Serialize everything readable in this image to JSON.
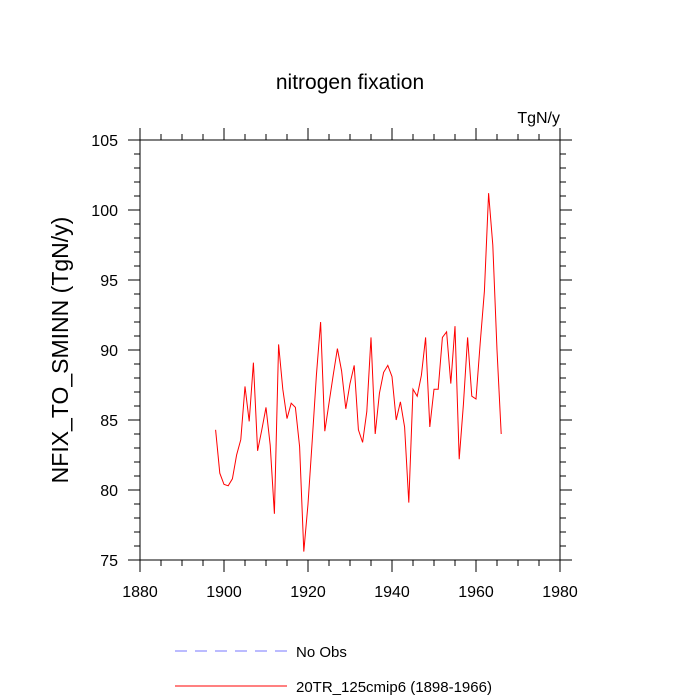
{
  "chart_data": {
    "type": "line",
    "title": "nitrogen fixation",
    "units": "TgN/y",
    "ylabel": "NFIX_TO_SMINN  (TgN/y)",
    "xlabel": "",
    "xlim": [
      1880,
      1980
    ],
    "ylim": [
      75,
      105
    ],
    "xticks": [
      1880,
      1900,
      1920,
      1940,
      1960,
      1980
    ],
    "yticks": [
      75,
      80,
      85,
      90,
      95,
      100,
      105
    ],
    "grid": false,
    "legend_position": "bottom",
    "series": [
      {
        "name": "20TR_125cmip6 (1898-1966)",
        "color": "#ff0000",
        "style": "solid",
        "x": [
          1898,
          1899,
          1900,
          1901,
          1902,
          1903,
          1904,
          1905,
          1906,
          1907,
          1908,
          1909,
          1910,
          1911,
          1912,
          1913,
          1914,
          1915,
          1916,
          1917,
          1918,
          1919,
          1920,
          1921,
          1922,
          1923,
          1924,
          1925,
          1926,
          1927,
          1928,
          1929,
          1930,
          1931,
          1932,
          1933,
          1934,
          1935,
          1936,
          1937,
          1938,
          1939,
          1940,
          1941,
          1942,
          1943,
          1944,
          1945,
          1946,
          1947,
          1948,
          1949,
          1950,
          1951,
          1952,
          1953,
          1954,
          1955,
          1956,
          1957,
          1958,
          1959,
          1960,
          1961,
          1962,
          1963,
          1964,
          1965,
          1966
        ],
        "values": [
          84.3,
          81.2,
          80.4,
          80.3,
          80.8,
          82.5,
          83.6,
          87.4,
          84.9,
          89.1,
          82.8,
          84.3,
          85.9,
          83.2,
          78.3,
          90.4,
          87.2,
          85.1,
          86.2,
          85.9,
          83.1,
          75.6,
          79.0,
          83.5,
          88.2,
          92.0,
          84.2,
          86.2,
          88.2,
          90.1,
          88.5,
          85.8,
          87.6,
          88.9,
          84.3,
          83.4,
          85.6,
          90.9,
          84.0,
          86.9,
          88.4,
          88.9,
          88.1,
          85.0,
          86.3,
          84.5,
          79.1,
          87.2,
          86.7,
          88.2,
          90.9,
          84.5,
          87.2,
          87.2,
          90.9,
          91.3,
          87.6,
          91.7,
          82.2,
          86.1,
          90.9,
          86.7,
          86.5,
          90.5,
          94.2,
          101.2,
          97.5,
          90.0,
          84.0
        ]
      },
      {
        "name": "No Obs",
        "color": "#7777ff",
        "style": "dashed",
        "x": [],
        "values": []
      }
    ]
  }
}
